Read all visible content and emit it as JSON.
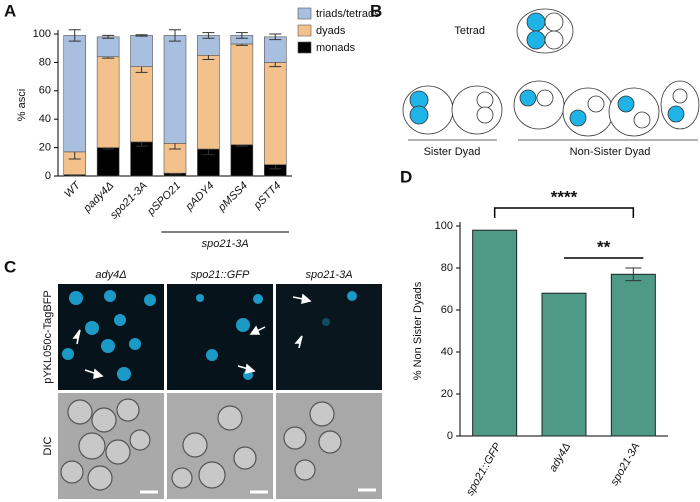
{
  "panels": [
    "A",
    "B",
    "C",
    "D"
  ],
  "chart_data": [
    {
      "type": "stacked_bar",
      "y_label": "% asci",
      "categories": [
        "WT",
        "pady4Δ",
        "spo21-3A",
        "pSPO21",
        "pADY4",
        "pMSS4",
        "pSTT4"
      ],
      "group_label": "spo21-3A",
      "series": [
        {
          "name": "monads",
          "color": "#000000",
          "values": [
            1,
            20,
            24,
            2,
            19,
            22,
            8
          ],
          "errors": [
            0.5,
            1,
            3,
            0.5,
            4,
            1,
            3
          ]
        },
        {
          "name": "dyads",
          "color": "#f3c28c",
          "values": [
            16,
            64,
            53,
            21,
            66,
            71,
            72
          ],
          "errors": [
            5,
            1,
            4,
            4,
            3,
            1,
            3
          ]
        },
        {
          "name": "triads/tetrads",
          "color": "#a9bfe0",
          "values": [
            82,
            14,
            22,
            76,
            14,
            6,
            18
          ],
          "errors": [
            4,
            1,
            0.5,
            4,
            2,
            2,
            2
          ]
        }
      ],
      "ylim": [
        0,
        100
      ],
      "yticks": [
        0,
        20,
        40,
        60,
        80,
        100
      ]
    },
    {
      "type": "bar",
      "y_label": "% Non Sister Dyads",
      "categories": [
        "spo21::GFP",
        "ady4Δ",
        "spo21-3A"
      ],
      "values": [
        98,
        68,
        77
      ],
      "errors": [
        0,
        0,
        3
      ],
      "color": "#4e9a87",
      "annotations": [
        "****",
        "**"
      ],
      "ylim": [
        0,
        100
      ],
      "yticks": [
        0,
        20,
        40,
        60,
        80,
        100
      ]
    }
  ],
  "diagram": {
    "tetrad": "Tetrad",
    "sister": "Sister Dyad",
    "non_sister": "Non-Sister Dyad"
  },
  "micrographs": {
    "columns": [
      "ady4Δ",
      "spo21::GFP",
      "spo21-3A"
    ],
    "rows": [
      "pYKL050c-TagBFP",
      "DIC"
    ]
  }
}
